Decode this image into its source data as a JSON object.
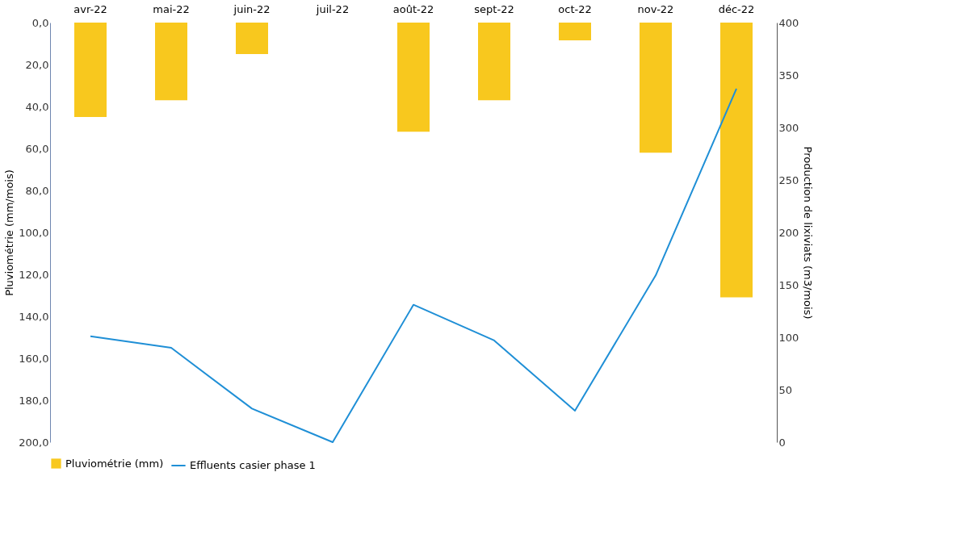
{
  "chart_data": {
    "type": "bar",
    "categories": [
      "avr-22",
      "mai-22",
      "juin-22",
      "juil-22",
      "août-22",
      "sept-22",
      "oct-22",
      "nov-22",
      "déc-22"
    ],
    "ylabel": "Pluviométrie (mm/mois)",
    "y2label": "Production de lixiviats (m3/mois)",
    "series": [
      {
        "name": "Pluviométrie (mm)",
        "color": "#f8c81e",
        "values": [
          45,
          37,
          15,
          0,
          52,
          37,
          8.5,
          62,
          131
        ]
      },
      {
        "name": "Effluents casier phase 1",
        "type": "line",
        "axis": "y2",
        "color": "#1f8fd6",
        "values": [
          101,
          90,
          32,
          0,
          131,
          97,
          30,
          159,
          337
        ]
      }
    ],
    "ylim": [
      200,
      0
    ],
    "yticks": [
      {
        "value": 0,
        "label": "0,0"
      },
      {
        "value": 20,
        "label": "20,0"
      },
      {
        "value": 40,
        "label": "40,0"
      },
      {
        "value": 60,
        "label": "60,0"
      },
      {
        "value": 80,
        "label": "80,0"
      },
      {
        "value": 100,
        "label": "100,0"
      },
      {
        "value": 120,
        "label": "120,0"
      },
      {
        "value": 140,
        "label": "140,0"
      },
      {
        "value": 160,
        "label": "160,0"
      },
      {
        "value": 180,
        "label": "180,0"
      },
      {
        "value": 200,
        "label": "200,0"
      }
    ],
    "y2lim": [
      0,
      400
    ],
    "y2ticks": [
      0,
      50,
      100,
      150,
      200,
      250,
      300,
      350,
      400
    ],
    "grid": false,
    "legend": "bottom",
    "line_style": "solid",
    "marker": "none"
  }
}
